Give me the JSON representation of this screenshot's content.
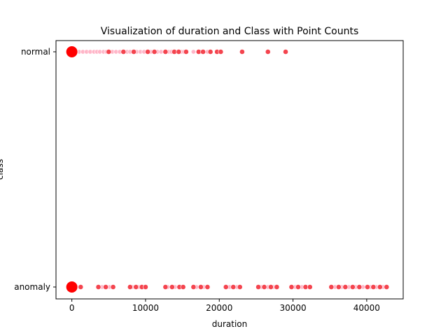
{
  "chart_data": {
    "type": "scatter",
    "title": "Visualization of duration and Class with Point Counts",
    "xlabel": "duration",
    "ylabel": "class",
    "xlim": [
      -2150,
      44950
    ],
    "x_ticks": [
      0,
      10000,
      20000,
      30000,
      40000
    ],
    "x_tick_labels": [
      "0",
      "10000",
      "20000",
      "30000",
      "40000"
    ],
    "categories": [
      "normal",
      "anomaly"
    ],
    "grid": false,
    "colors": {
      "large": "#ff0000",
      "medium": "#f4444e",
      "small": "#ffb6c8"
    },
    "series": [
      {
        "category": "normal",
        "large_points": [
          0
        ],
        "medium_points": [
          5000,
          7000,
          8400,
          10300,
          11200,
          12700,
          13900,
          14500,
          15500,
          17200,
          17800,
          18800,
          19700,
          20200,
          23100,
          26600,
          29000
        ],
        "small_points": [
          600,
          1000,
          1500,
          2000,
          2500,
          3000,
          3400,
          3800,
          4300,
          4700,
          5500,
          6000,
          6500,
          7500,
          7900,
          8800,
          9300,
          9800,
          10700,
          11600,
          12100,
          13200,
          13500,
          14200,
          14900,
          15200,
          16500,
          17500,
          18400
        ]
      },
      {
        "category": "anomaly",
        "large_points": [
          0
        ],
        "medium_points": [
          1200,
          3600,
          4600,
          5600,
          7900,
          8700,
          9500,
          10000,
          12700,
          13600,
          14600,
          15100,
          16500,
          17500,
          18400,
          20900,
          21900,
          22800,
          25300,
          26100,
          27000,
          27800,
          29800,
          30700,
          31700,
          32300,
          35200,
          36200,
          37100,
          38100,
          39000,
          40100,
          40900,
          41800,
          42700
        ],
        "small_points": [
          700,
          4100,
          5100,
          8200,
          9100,
          9800,
          13000,
          14000,
          16900,
          17900,
          21400,
          22400,
          25700,
          26600,
          27400,
          30300,
          31200,
          35700,
          36600,
          37600,
          38500,
          39500,
          40500,
          41300,
          42200
        ]
      }
    ]
  }
}
